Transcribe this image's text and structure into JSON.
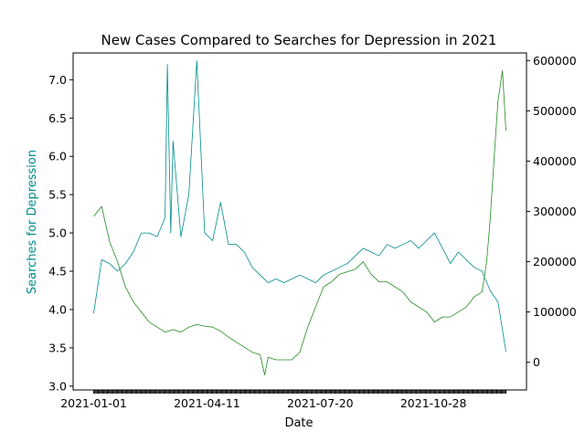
{
  "chart_data": {
    "type": "line",
    "title": "New Cases Compared to Searches for Depression in 2021",
    "xlabel": "Date",
    "ylabel_left": "Searches for Depression",
    "x_range": [
      "2021-01-01",
      "2021-12-31"
    ],
    "x_tick_labels": [
      "2021-01-01",
      "2021-04-11",
      "2021-07-20",
      "2021-10-28"
    ],
    "ylim_left": [
      2.95,
      7.35
    ],
    "y_ticks_left": [
      "3.0",
      "3.5",
      "4.0",
      "4.5",
      "5.0",
      "5.5",
      "6.0",
      "6.5",
      "7.0"
    ],
    "ylim_right": [
      -55000,
      615000
    ],
    "y_ticks_right": [
      "0",
      "100000",
      "200000",
      "300000",
      "400000",
      "500000",
      "600000"
    ],
    "grid": false,
    "legend": "none",
    "colors": {
      "searches": "#008b8b",
      "cases": "#228b22"
    },
    "series": [
      {
        "axis": "left",
        "color": "#008b8b",
        "x": [
          "2021-01-01",
          "2021-01-08",
          "2021-01-15",
          "2021-01-22",
          "2021-01-29",
          "2021-02-05",
          "2021-02-12",
          "2021-02-19",
          "2021-02-26",
          "2021-03-05",
          "2021-03-07",
          "2021-03-10",
          "2021-03-12",
          "2021-03-19",
          "2021-03-26",
          "2021-04-02",
          "2021-04-09",
          "2021-04-16",
          "2021-04-23",
          "2021-04-30",
          "2021-05-07",
          "2021-05-14",
          "2021-05-21",
          "2021-05-28",
          "2021-06-04",
          "2021-06-11",
          "2021-06-18",
          "2021-06-25",
          "2021-07-02",
          "2021-07-09",
          "2021-07-16",
          "2021-07-23",
          "2021-07-30",
          "2021-08-06",
          "2021-08-13",
          "2021-08-20",
          "2021-08-27",
          "2021-09-03",
          "2021-09-10",
          "2021-09-17",
          "2021-09-24",
          "2021-10-01",
          "2021-10-08",
          "2021-10-15",
          "2021-10-22",
          "2021-10-29",
          "2021-11-05",
          "2021-11-12",
          "2021-11-19",
          "2021-11-26",
          "2021-12-03",
          "2021-12-10",
          "2021-12-17",
          "2021-12-24",
          "2021-12-31"
        ],
        "y": [
          3.95,
          4.65,
          4.6,
          4.5,
          4.6,
          4.75,
          5.0,
          5.0,
          4.95,
          5.2,
          7.2,
          5.0,
          6.2,
          4.95,
          5.5,
          7.25,
          5.0,
          4.9,
          5.4,
          4.85,
          4.85,
          4.75,
          4.55,
          4.45,
          4.35,
          4.4,
          4.35,
          4.4,
          4.45,
          4.4,
          4.35,
          4.45,
          4.5,
          4.55,
          4.6,
          4.7,
          4.8,
          4.75,
          4.7,
          4.85,
          4.8,
          4.85,
          4.9,
          4.8,
          4.9,
          5.0,
          4.8,
          4.6,
          4.75,
          4.65,
          4.55,
          4.5,
          4.25,
          4.1,
          3.45
        ]
      },
      {
        "axis": "right",
        "color": "#228b22",
        "x": [
          "2021-01-01",
          "2021-01-08",
          "2021-01-15",
          "2021-01-22",
          "2021-01-29",
          "2021-02-05",
          "2021-02-12",
          "2021-02-19",
          "2021-02-26",
          "2021-03-05",
          "2021-03-12",
          "2021-03-19",
          "2021-03-26",
          "2021-04-02",
          "2021-04-09",
          "2021-04-16",
          "2021-04-23",
          "2021-04-30",
          "2021-05-07",
          "2021-05-14",
          "2021-05-21",
          "2021-05-28",
          "2021-06-01",
          "2021-06-04",
          "2021-06-11",
          "2021-06-18",
          "2021-06-25",
          "2021-07-02",
          "2021-07-09",
          "2021-07-16",
          "2021-07-23",
          "2021-07-30",
          "2021-08-06",
          "2021-08-13",
          "2021-08-20",
          "2021-08-27",
          "2021-09-03",
          "2021-09-10",
          "2021-09-17",
          "2021-09-24",
          "2021-10-01",
          "2021-10-08",
          "2021-10-15",
          "2021-10-22",
          "2021-10-29",
          "2021-11-05",
          "2021-11-12",
          "2021-11-19",
          "2021-11-26",
          "2021-12-03",
          "2021-12-10",
          "2021-12-14",
          "2021-12-17",
          "2021-12-21",
          "2021-12-24",
          "2021-12-28",
          "2021-12-31"
        ],
        "y": [
          290000,
          310000,
          240000,
          200000,
          150000,
          120000,
          100000,
          80000,
          70000,
          60000,
          65000,
          60000,
          70000,
          75000,
          72000,
          70000,
          62000,
          50000,
          40000,
          30000,
          20000,
          15000,
          -25000,
          10000,
          5000,
          5000,
          5000,
          20000,
          70000,
          110000,
          150000,
          160000,
          175000,
          180000,
          185000,
          200000,
          175000,
          160000,
          160000,
          150000,
          140000,
          120000,
          110000,
          100000,
          80000,
          90000,
          90000,
          100000,
          110000,
          130000,
          140000,
          200000,
          280000,
          420000,
          520000,
          580000,
          460000
        ]
      }
    ]
  }
}
